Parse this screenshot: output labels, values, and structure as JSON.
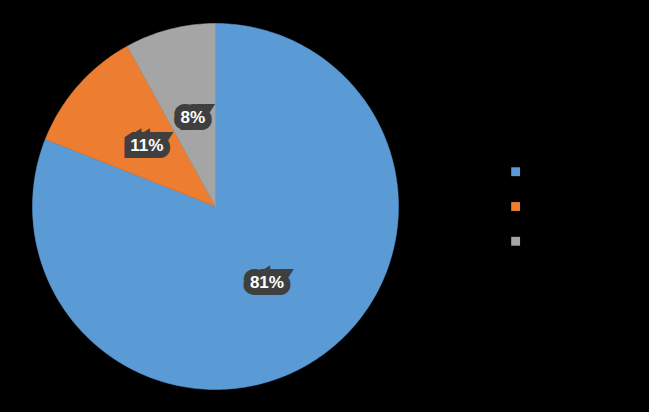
{
  "chart_data": {
    "type": "pie",
    "categories": [
      null,
      null,
      null
    ],
    "values": [
      81,
      11,
      8
    ],
    "value_labels": [
      "81%",
      "11%",
      "8%"
    ],
    "colors": [
      "#5b9bd5",
      "#ed7d31",
      "#a5a5a5"
    ],
    "data_labels": true,
    "legend": "right"
  }
}
